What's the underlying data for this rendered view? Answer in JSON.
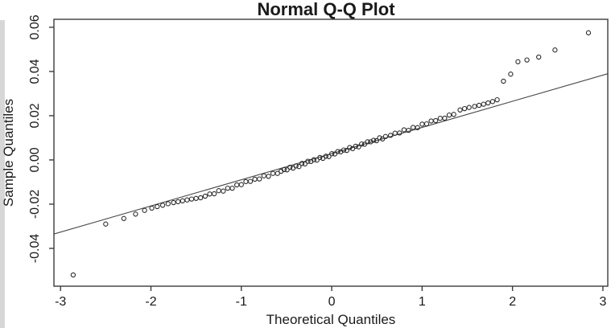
{
  "figure": {
    "background": "#ffffff",
    "edge_strip_color": "#d7d7d7"
  },
  "chart_data": {
    "type": "scatter",
    "title": "Normal Q-Q Plot",
    "xlabel": "Theoretical Quantiles",
    "ylabel": "Sample Quantiles",
    "xlim": [
      -3.073,
      3.054
    ],
    "ylim": [
      -0.0571,
      0.0636
    ],
    "x_tick_values": [
      -3,
      -2,
      -1,
      0,
      1,
      2,
      3
    ],
    "x_tick_labels": [
      "-3",
      "-2",
      "-1",
      "0",
      "1",
      "2",
      "3"
    ],
    "y_tick_values": [
      0.06,
      0.04,
      0.02,
      0.0,
      -0.02,
      -0.04
    ],
    "y_tick_labels": [
      "0.06",
      "0.04",
      "0.02",
      "0.00",
      "-0.02",
      "-0.04"
    ],
    "grid": false,
    "legend": null,
    "marker_style": "open-circle",
    "point_color": "#2a2a2a",
    "line_color": "#4a4a4a",
    "box_color": "#3c3c3c",
    "text_color": "#1a1a1a",
    "reference_line": {
      "x1": -3.073,
      "y1": -0.0335,
      "x2": 3.054,
      "y2": 0.039
    },
    "points": [
      [
        -2.86,
        -0.052
      ],
      [
        -2.5,
        -0.029
      ],
      [
        -2.3,
        -0.0265
      ],
      [
        -2.17,
        -0.0245
      ],
      [
        -2.07,
        -0.0228
      ],
      [
        -1.99,
        -0.0218
      ],
      [
        -1.93,
        -0.0211
      ],
      [
        -1.87,
        -0.0205
      ],
      [
        -1.81,
        -0.0198
      ],
      [
        -1.75,
        -0.0193
      ],
      [
        -1.7,
        -0.0189
      ],
      [
        -1.65,
        -0.0185
      ],
      [
        -1.6,
        -0.0181
      ],
      [
        -1.55,
        -0.0177
      ],
      [
        -1.5,
        -0.0174
      ],
      [
        -1.45,
        -0.0171
      ],
      [
        -1.4,
        -0.0164
      ],
      [
        -1.35,
        -0.0154
      ],
      [
        -1.3,
        -0.0153
      ],
      [
        -1.25,
        -0.0139
      ],
      [
        -1.2,
        -0.0141
      ],
      [
        -1.15,
        -0.0128
      ],
      [
        -1.1,
        -0.0128
      ],
      [
        -1.05,
        -0.0113
      ],
      [
        -1.0,
        -0.0112
      ],
      [
        -0.95,
        -0.0098
      ],
      [
        -0.9,
        -0.0097
      ],
      [
        -0.85,
        -0.0087
      ],
      [
        -0.8,
        -0.0086
      ],
      [
        -0.75,
        -0.0072
      ],
      [
        -0.7,
        -0.0074
      ],
      [
        -0.65,
        -0.0061
      ],
      [
        -0.6,
        -0.0061
      ],
      [
        -0.56,
        -0.0051
      ],
      [
        -0.527,
        -0.0044
      ],
      [
        -0.494,
        -0.0045
      ],
      [
        -0.461,
        -0.0033
      ],
      [
        -0.428,
        -0.0037
      ],
      [
        -0.395,
        -0.0027
      ],
      [
        -0.362,
        -0.003
      ],
      [
        -0.329,
        -0.0016
      ],
      [
        -0.296,
        -0.0018
      ],
      [
        -0.263,
        -0.0006
      ],
      [
        -0.23,
        -0.0007
      ],
      [
        -0.197,
        0.0001
      ],
      [
        -0.164,
        -0.0001
      ],
      [
        -0.131,
        0.0011
      ],
      [
        -0.098,
        0.0007
      ],
      [
        -0.065,
        0.0017
      ],
      [
        -0.032,
        0.0015
      ],
      [
        0.001,
        0.0028
      ],
      [
        0.034,
        0.0027
      ],
      [
        0.067,
        0.0038
      ],
      [
        0.1,
        0.0037
      ],
      [
        0.133,
        0.0045
      ],
      [
        0.166,
        0.0043
      ],
      [
        0.199,
        0.0056
      ],
      [
        0.232,
        0.0051
      ],
      [
        0.265,
        0.0062
      ],
      [
        0.298,
        0.0059
      ],
      [
        0.331,
        0.0072
      ],
      [
        0.364,
        0.0071
      ],
      [
        0.397,
        0.0082
      ],
      [
        0.43,
        0.0082
      ],
      [
        0.463,
        0.0089
      ],
      [
        0.496,
        0.0087
      ],
      [
        0.529,
        0.01
      ],
      [
        0.562,
        0.0095
      ],
      [
        0.595,
        0.0106
      ],
      [
        0.65,
        0.0111
      ],
      [
        0.7,
        0.0121
      ],
      [
        0.75,
        0.0122
      ],
      [
        0.8,
        0.0136
      ],
      [
        0.85,
        0.0134
      ],
      [
        0.9,
        0.0147
      ],
      [
        0.95,
        0.0146
      ],
      [
        1.0,
        0.0162
      ],
      [
        1.05,
        0.0163
      ],
      [
        1.1,
        0.0176
      ],
      [
        1.15,
        0.0178
      ],
      [
        1.2,
        0.0188
      ],
      [
        1.25,
        0.0189
      ],
      [
        1.3,
        0.0203
      ],
      [
        1.35,
        0.0206
      ],
      [
        1.42,
        0.0226
      ],
      [
        1.47,
        0.0232
      ],
      [
        1.52,
        0.0237
      ],
      [
        1.58,
        0.0242
      ],
      [
        1.63,
        0.0247
      ],
      [
        1.68,
        0.0252
      ],
      [
        1.73,
        0.0258
      ],
      [
        1.78,
        0.0264
      ],
      [
        1.83,
        0.0272
      ],
      [
        1.9,
        0.0356
      ],
      [
        1.98,
        0.0388
      ],
      [
        2.06,
        0.0444
      ],
      [
        2.16,
        0.0452
      ],
      [
        2.29,
        0.0465
      ],
      [
        2.47,
        0.0497
      ],
      [
        2.84,
        0.0575
      ]
    ]
  }
}
